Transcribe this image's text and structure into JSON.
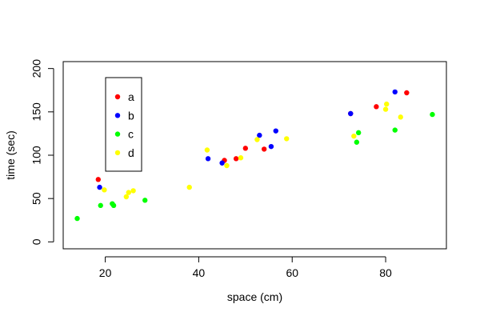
{
  "chart_data": {
    "type": "scatter",
    "title": "",
    "xlabel": "space (cm)",
    "ylabel": "time (sec)",
    "xlim": [
      11,
      93
    ],
    "ylim": [
      -8,
      208
    ],
    "x_ticks": [
      20,
      40,
      60,
      80
    ],
    "y_ticks": [
      0,
      50,
      100,
      150,
      200
    ],
    "grid": false,
    "legend_position": "top-left",
    "series": [
      {
        "name": "a",
        "color": "#ff0000",
        "points": [
          [
            18.5,
            72
          ],
          [
            45.5,
            94
          ],
          [
            48,
            96
          ],
          [
            50,
            108
          ],
          [
            54,
            107
          ],
          [
            72.5,
            148
          ],
          [
            78,
            156
          ],
          [
            84.5,
            172
          ]
        ]
      },
      {
        "name": "b",
        "color": "#0000ff",
        "points": [
          [
            18.8,
            63
          ],
          [
            42,
            96
          ],
          [
            45,
            91
          ],
          [
            53,
            123
          ],
          [
            55.5,
            110
          ],
          [
            56.5,
            128
          ],
          [
            72.5,
            148
          ],
          [
            82,
            173
          ]
        ]
      },
      {
        "name": "c",
        "color": "#00ff00",
        "points": [
          [
            14,
            27
          ],
          [
            19,
            42
          ],
          [
            21.5,
            44
          ],
          [
            21.8,
            42
          ],
          [
            28.5,
            48
          ],
          [
            73.8,
            115
          ],
          [
            74.2,
            126
          ],
          [
            82,
            129
          ],
          [
            90,
            147
          ]
        ]
      },
      {
        "name": "d",
        "color": "#ffff00",
        "points": [
          [
            19.8,
            60
          ],
          [
            24.5,
            52
          ],
          [
            25,
            57
          ],
          [
            26,
            59
          ],
          [
            38,
            63
          ],
          [
            41.8,
            106
          ],
          [
            46,
            88
          ],
          [
            49,
            97
          ],
          [
            52.5,
            118
          ],
          [
            58.8,
            119
          ],
          [
            73.2,
            122
          ],
          [
            80,
            153
          ],
          [
            80.2,
            159
          ],
          [
            83.2,
            144
          ]
        ]
      }
    ]
  }
}
